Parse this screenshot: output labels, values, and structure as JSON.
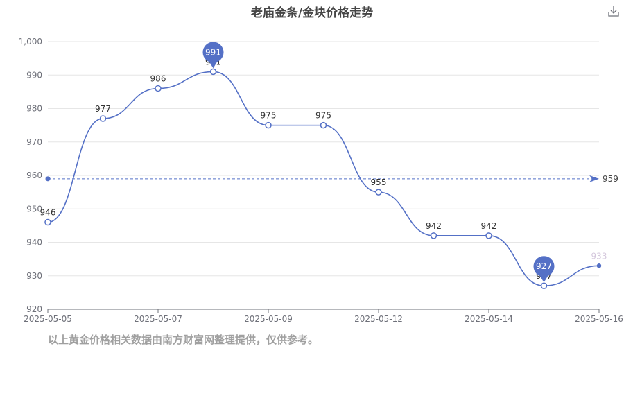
{
  "title": "老庙金条/金块价格走势",
  "footer_note": "以上黄金价格相关数据由南方财富网整理提供，仅供参考。",
  "icons": {
    "download": "download-icon"
  },
  "colors": {
    "line": "#5470c6",
    "grid": "#e6e6e6",
    "axis": "#6e7079",
    "text": "#464646",
    "footer": "#a0a0a0"
  },
  "chart_data": {
    "type": "line",
    "x_tick_labels": [
      "2025-05-05",
      "2025-05-07",
      "2025-05-09",
      "2025-05-12",
      "2025-05-14",
      "2025-05-16"
    ],
    "y_tick_labels": [
      "920",
      "930",
      "940",
      "950",
      "960",
      "970",
      "980",
      "990",
      "1,000"
    ],
    "ylim": [
      920,
      1000
    ],
    "series": [
      {
        "values": [
          946,
          977,
          986,
          991,
          975,
          975,
          955,
          942,
          942,
          927,
          933
        ],
        "labels": [
          "946",
          "977",
          "986",
          "991",
          "975",
          "975",
          "955",
          "942",
          "942",
          "927",
          "933"
        ]
      }
    ],
    "max_marker": {
      "index": 3,
      "value": 991,
      "label": "991"
    },
    "min_marker": {
      "index": 9,
      "value": 927,
      "label": "927"
    },
    "average": {
      "value": 959,
      "label": "959"
    },
    "grid": true,
    "legend": "none"
  }
}
